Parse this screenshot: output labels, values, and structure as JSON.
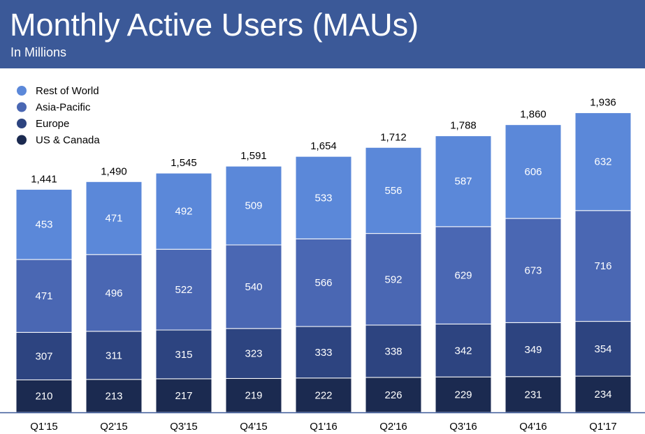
{
  "header": {
    "title": "Monthly Active Users (MAUs)",
    "subtitle": "In Millions"
  },
  "colors": {
    "header_bg": "#3b5998",
    "rest_of_world": "#5b88d9",
    "asia_pacific": "#4a67b3",
    "europe": "#2d4480",
    "us_canada": "#1b2a50",
    "axis": "#3b5998"
  },
  "chart_data": {
    "type": "bar",
    "stacked": true,
    "categories": [
      "Q1'15",
      "Q2'15",
      "Q3'15",
      "Q4'15",
      "Q1'16",
      "Q2'16",
      "Q3'16",
      "Q4'16",
      "Q1'17"
    ],
    "series": [
      {
        "name": "US & Canada",
        "color": "#1b2a50",
        "values": [
          210,
          213,
          217,
          219,
          222,
          226,
          229,
          231,
          234
        ]
      },
      {
        "name": "Europe",
        "color": "#2d4480",
        "values": [
          307,
          311,
          315,
          323,
          333,
          338,
          342,
          349,
          354
        ]
      },
      {
        "name": "Asia-Pacific",
        "color": "#4a67b3",
        "values": [
          471,
          496,
          522,
          540,
          566,
          592,
          629,
          673,
          716
        ]
      },
      {
        "name": "Rest of World",
        "color": "#5b88d9",
        "values": [
          453,
          471,
          492,
          509,
          533,
          556,
          587,
          606,
          632
        ]
      }
    ],
    "totals": [
      "1,441",
      "1,490",
      "1,545",
      "1,591",
      "1,654",
      "1,712",
      "1,788",
      "1,860",
      "1,936"
    ],
    "legend_order": [
      "Rest of World",
      "Asia-Pacific",
      "Europe",
      "US & Canada"
    ],
    "legend_position": "top-left",
    "ylim": [
      0,
      2050
    ],
    "grid": false
  }
}
